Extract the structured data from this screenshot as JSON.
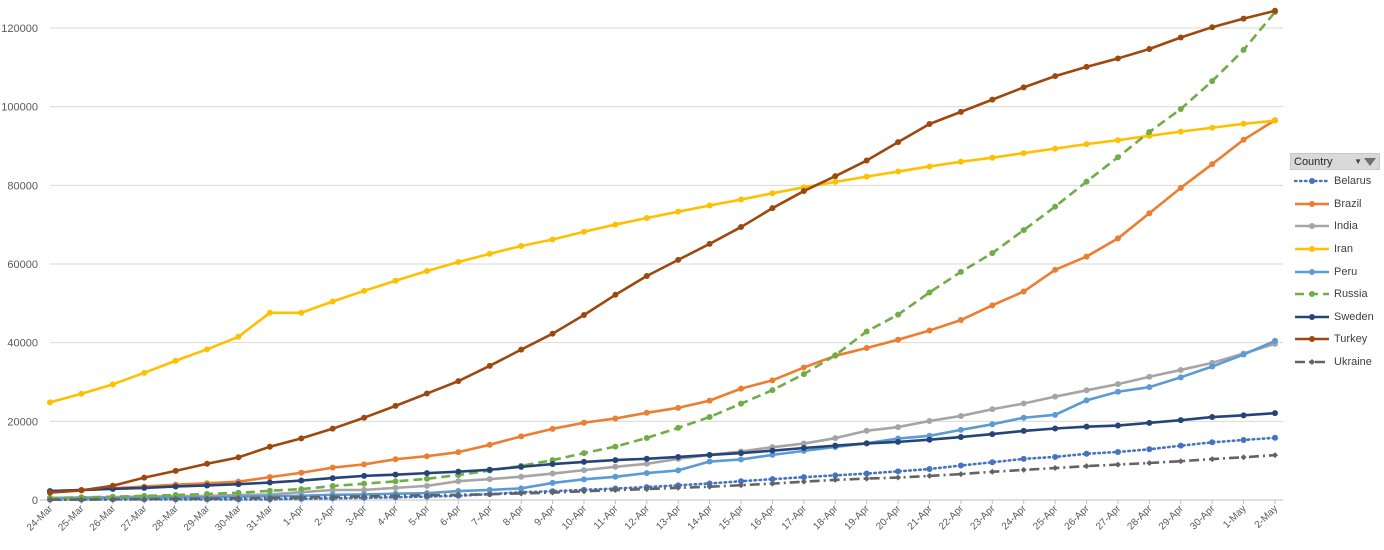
{
  "legend": {
    "title": "Country",
    "filter_icon": "filter-icon",
    "dropdown_icon": "chevron-down-icon"
  },
  "chart_data": {
    "type": "line",
    "title": "",
    "xlabel": "",
    "ylabel": "",
    "ylim": [
      0,
      120000
    ],
    "yticks": [
      0,
      20000,
      40000,
      60000,
      80000,
      100000,
      120000
    ],
    "grid": true,
    "legend_position": "right",
    "categories": [
      "24-Mar",
      "25-Mar",
      "26-Mar",
      "27-Mar",
      "28-Mar",
      "29-Mar",
      "30-Mar",
      "31-Mar",
      "1-Apr",
      "2-Apr",
      "3-Apr",
      "4-Apr",
      "5-Apr",
      "6-Apr",
      "7-Apr",
      "8-Apr",
      "9-Apr",
      "10-Apr",
      "11-Apr",
      "12-Apr",
      "13-Apr",
      "14-Apr",
      "15-Apr",
      "16-Apr",
      "17-Apr",
      "18-Apr",
      "19-Apr",
      "20-Apr",
      "21-Apr",
      "22-Apr",
      "23-Apr",
      "24-Apr",
      "25-Apr",
      "26-Apr",
      "27-Apr",
      "28-Apr",
      "29-Apr",
      "30-Apr",
      "1-May",
      "2-May"
    ],
    "series": [
      {
        "name": "Belarus",
        "color": "#4472c4",
        "dash": "dot",
        "values": [
          86,
          94,
          152,
          152,
          157,
          152,
          152,
          152,
          304,
          440,
          562,
          700,
          861,
          1066,
          1486,
          1981,
          2226,
          2578,
          2919,
          3281,
          3728,
          4204,
          4779,
          5297,
          5807,
          6264,
          6723,
          7281,
          7878,
          8773,
          9590,
          10463,
          10948,
          11750,
          12208,
          12897,
          13811,
          14669,
          15251,
          15828
        ]
      },
      {
        "name": "Brazil",
        "color": "#ed7d31",
        "dash": "solid",
        "values": [
          2247,
          2554,
          2985,
          3417,
          3904,
          4256,
          4661,
          5812,
          6931,
          8229,
          9056,
          10360,
          11130,
          12161,
          14034,
          16170,
          18092,
          19638,
          20727,
          22169,
          23430,
          25262,
          28320,
          30425,
          33682,
          36658,
          38654,
          40743,
          43079,
          45757,
          49492,
          52995,
          58509,
          61888,
          66501,
          72899,
          79361,
          85380,
          91589,
          96559
        ]
      },
      {
        "name": "India",
        "color": "#a5a5a5",
        "dash": "solid",
        "values": [
          536,
          657,
          727,
          887,
          987,
          1024,
          1251,
          1397,
          1998,
          2543,
          2567,
          3082,
          3588,
          4778,
          5311,
          5916,
          6725,
          7598,
          8446,
          9205,
          10453,
          11487,
          12322,
          13430,
          14352,
          15722,
          17615,
          18539,
          20080,
          21370,
          23077,
          24530,
          26283,
          27890,
          29451,
          31324,
          33062,
          34863,
          37257,
          39699
        ]
      },
      {
        "name": "Iran",
        "color": "#ffc000",
        "dash": "solid",
        "values": [
          24811,
          27017,
          29406,
          32332,
          35408,
          38309,
          41495,
          47593,
          47593,
          50468,
          53183,
          55743,
          58226,
          60500,
          62589,
          64586,
          66220,
          68192,
          70029,
          71686,
          73303,
          74877,
          76389,
          77995,
          79494,
          80868,
          82211,
          83505,
          84802,
          85996,
          87026,
          88194,
          89328,
          90481,
          91472,
          92584,
          93657,
          94640,
          95646,
          96448
        ]
      },
      {
        "name": "Peru",
        "color": "#5b9bd5",
        "dash": "solid",
        "values": [
          395,
          416,
          480,
          580,
          635,
          671,
          852,
          950,
          1065,
          1323,
          1414,
          1595,
          1746,
          2281,
          2561,
          2954,
          4342,
          5256,
          5897,
          6848,
          7519,
          9784,
          10303,
          11475,
          12491,
          13489,
          14420,
          15628,
          16325,
          17837,
          19250,
          20914,
          21648,
          25331,
          27517,
          28699,
          31190,
          33931,
          36976,
          40459
        ]
      },
      {
        "name": "Russia",
        "color": "#70ad47",
        "dash": "dash",
        "values": [
          495,
          658,
          840,
          1036,
          1264,
          1534,
          1836,
          2337,
          2777,
          3548,
          4149,
          4731,
          5389,
          6343,
          7497,
          8672,
          10131,
          11917,
          13584,
          15770,
          18328,
          21102,
          24490,
          27938,
          32008,
          36793,
          42853,
          47121,
          52763,
          57999,
          62773,
          68622,
          74588,
          80949,
          87147,
          93558,
          99399,
          106498,
          114431,
          124054
        ]
      },
      {
        "name": "Sweden",
        "color": "#264478",
        "dash": "solid",
        "values": [
          2272,
          2526,
          2840,
          3069,
          3447,
          3700,
          4028,
          4435,
          4947,
          5568,
          6131,
          6443,
          6830,
          7206,
          7693,
          8419,
          9141,
          9685,
          10151,
          10483,
          10948,
          11445,
          11927,
          12540,
          13216,
          13822,
          14385,
          14777,
          15322,
          16004,
          16755,
          17567,
          18177,
          18640,
          18926,
          19621,
          20302,
          21092,
          21520,
          22082
        ]
      },
      {
        "name": "Turkey",
        "color": "#9e480e",
        "dash": "solid",
        "values": [
          1872,
          2433,
          3629,
          5698,
          7402,
          9217,
          10827,
          13531,
          15679,
          18135,
          20921,
          23934,
          27069,
          30217,
          34109,
          38226,
          42282,
          47029,
          52167,
          56956,
          61049,
          65111,
          69392,
          74193,
          78546,
          82329,
          86306,
          90980,
          95591,
          98674,
          101790,
          104912,
          107773,
          110130,
          112261,
          114653,
          117589,
          120204,
          122392,
          124375
        ]
      },
      {
        "name": "Ukraine",
        "color": "#636363",
        "dash": "dashdot",
        "values": [
          73,
          97,
          145,
          196,
          310,
          356,
          475,
          548,
          669,
          804,
          942,
          1072,
          1225,
          1319,
          1462,
          1668,
          1892,
          2203,
          2511,
          2777,
          3102,
          3372,
          3764,
          4161,
          4662,
          5106,
          5449,
          5710,
          6125,
          6592,
          7170,
          7647,
          8125,
          8617,
          9009,
          9410,
          9866,
          10406,
          10861,
          11411
        ]
      }
    ]
  }
}
